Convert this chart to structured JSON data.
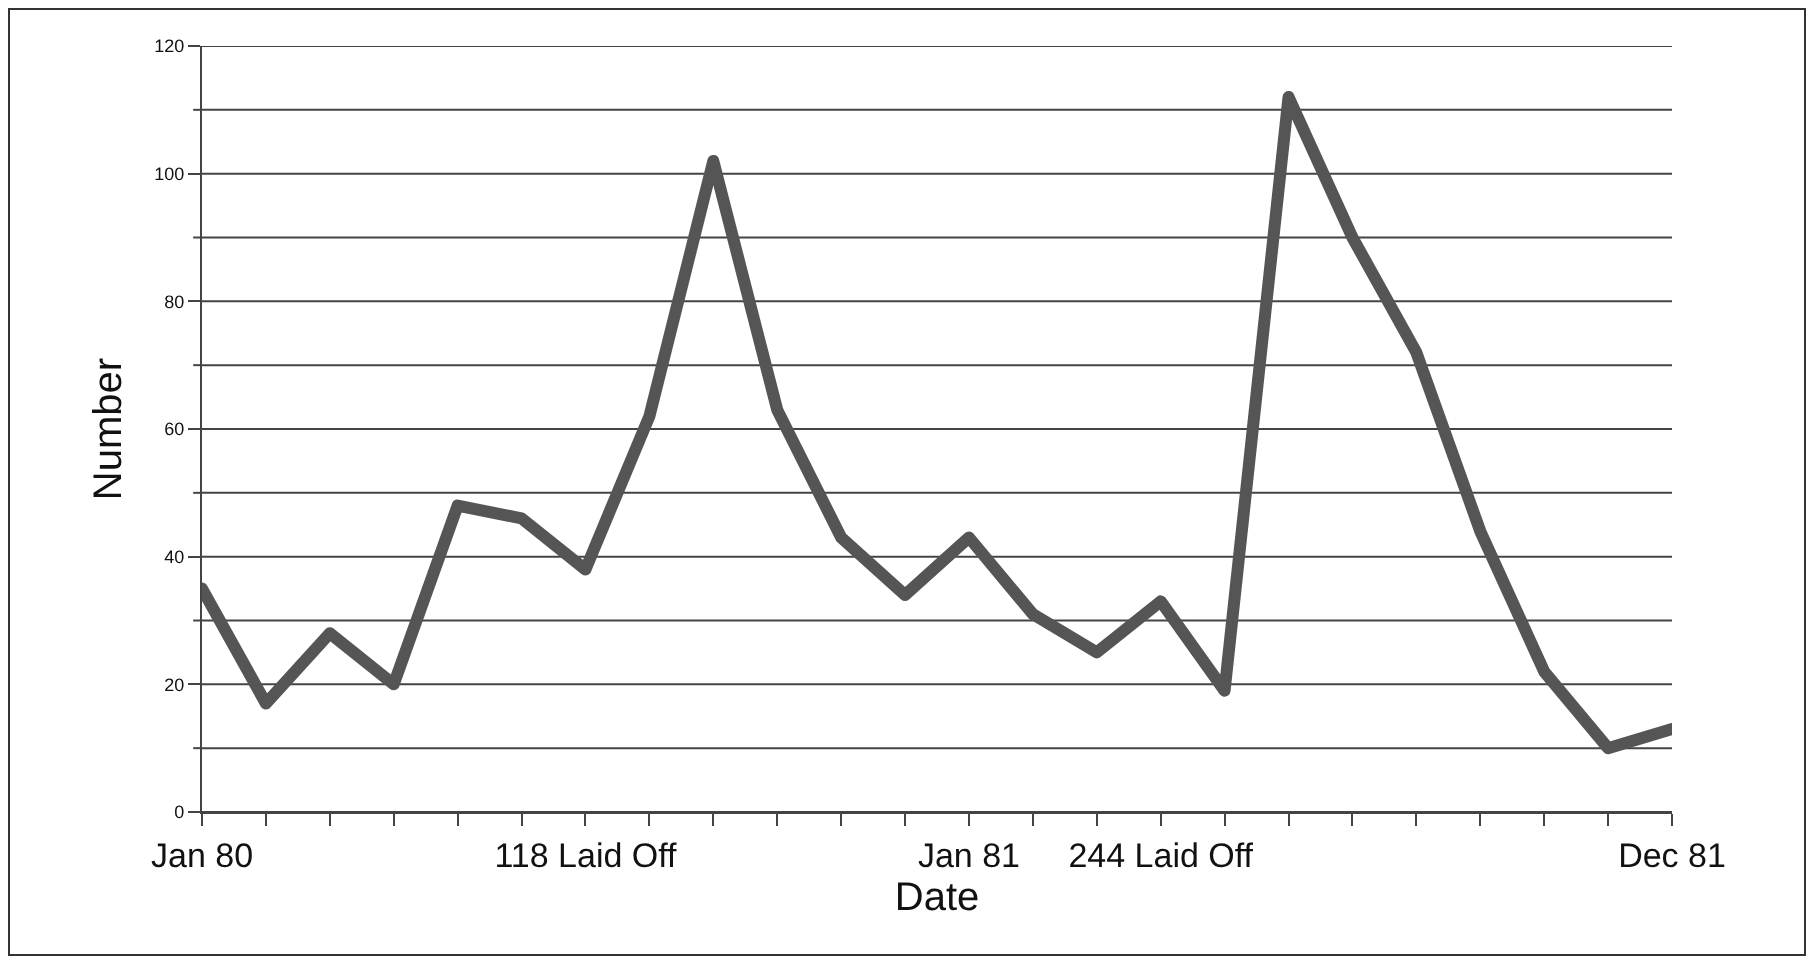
{
  "chart_data": {
    "type": "line",
    "xlabel": "Date",
    "ylabel": "Number",
    "categories": [
      "Jan 80",
      null,
      null,
      null,
      null,
      null,
      "118 Laid Off",
      null,
      null,
      null,
      null,
      null,
      "Jan 81",
      null,
      null,
      "244 Laid Off",
      null,
      null,
      null,
      null,
      null,
      null,
      null,
      "Dec 81"
    ],
    "series": [
      {
        "color": "#555555",
        "values": [
          35,
          17,
          28,
          20,
          48,
          46,
          38,
          62,
          102,
          63,
          43,
          34,
          43,
          31,
          25,
          33,
          19,
          112,
          90,
          72,
          44,
          22,
          10,
          13
        ]
      }
    ],
    "ylim": [
      0,
      120
    ],
    "yticks": [
      0,
      {
        "value": 10,
        "label": null
      },
      20,
      {
        "value": 30,
        "label": null
      },
      40,
      {
        "value": 50,
        "label": null
      },
      60,
      {
        "value": 70,
        "label": null
      },
      80,
      {
        "value": 90,
        "label": null
      },
      100,
      {
        "value": 110,
        "label": null
      },
      120
    ],
    "grid": "y",
    "marker": "none",
    "line_style": "solid"
  }
}
